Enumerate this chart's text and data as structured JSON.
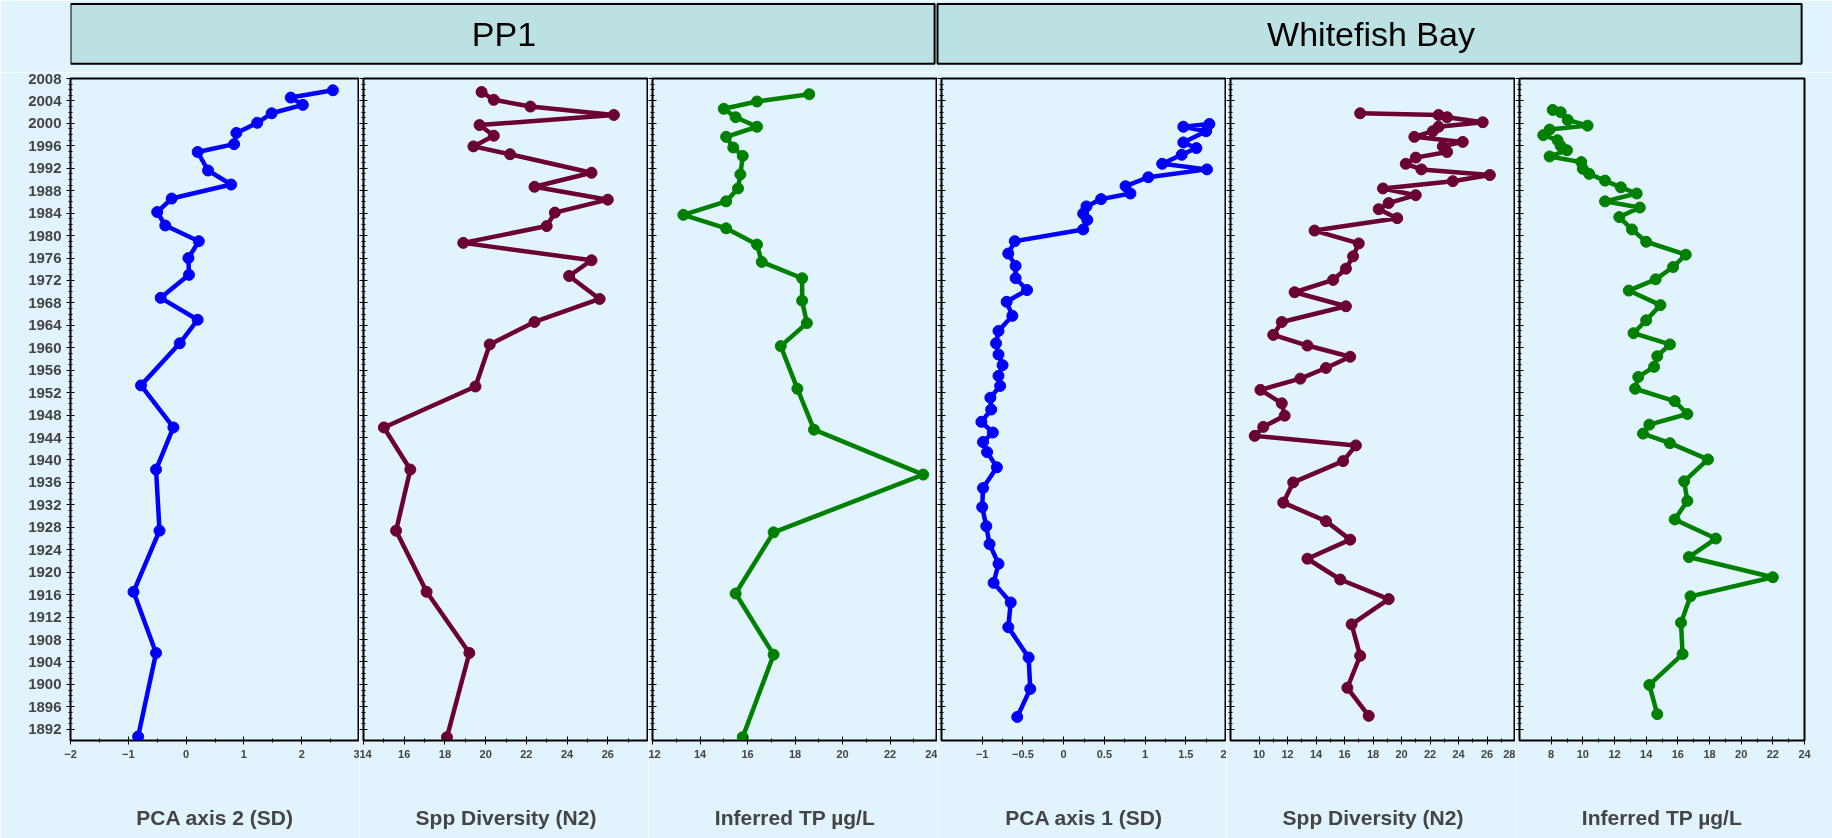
{
  "chart_data": [
    {
      "type": "other",
      "annotations": [
        "PP1",
        "Whitefish Bay"
      ]
    },
    {
      "type": "line",
      "xlabel": "PCA axis 2 (SD)",
      "xlim": [
        -2,
        3
      ],
      "xticks": [
        -2,
        -1,
        0,
        1,
        2,
        3
      ],
      "ylim": [
        1890,
        2008
      ],
      "yticks": [
        1892,
        1896,
        1900,
        1904,
        1908,
        1912,
        1916,
        1920,
        1924,
        1928,
        1932,
        1936,
        1940,
        1944,
        1948,
        1952,
        1956,
        1960,
        1964,
        1968,
        1972,
        1976,
        1980,
        1984,
        1988,
        1992,
        1996,
        2000,
        2004,
        2008
      ],
      "marker": "circle",
      "grid": false,
      "series": [
        {
          "color": "#0000ff",
          "x": [
            2.54,
            1.81,
            2.02,
            1.48,
            1.23,
            0.87,
            0.83,
            0.2,
            0.38,
            0.78,
            -0.25,
            -0.5,
            -0.36,
            0.22,
            0.04,
            0.05,
            -0.44,
            0.2,
            -0.11,
            -0.78,
            -0.22,
            -0.52,
            -0.46,
            -0.91,
            -0.52,
            -0.83
          ],
          "values": [
            2005.9,
            2004.6,
            2003.3,
            2001.8,
            2000.1,
            1998.3,
            1996.3,
            1994.9,
            1991.6,
            1989.1,
            1986.6,
            1984.2,
            1981.8,
            1979,
            1976,
            1973,
            1968.9,
            1965,
            1960.8,
            1953.3,
            1945.8,
            1938.3,
            1927.4,
            1916.5,
            1905.6,
            1890.7
          ]
        }
      ]
    },
    {
      "type": "line",
      "xlabel": "Spp Diversity (N2)",
      "xlim": [
        14,
        28
      ],
      "xticks": [
        14,
        16,
        18,
        20,
        22,
        24,
        26,
        {
          "value": 28,
          "label": null
        }
      ],
      "ylim": [
        1890,
        2008
      ],
      "yticks": [
        1892,
        1896,
        1900,
        1904,
        1908,
        1912,
        1916,
        1920,
        1924,
        1928,
        1932,
        1936,
        1940,
        1944,
        1948,
        1952,
        1956,
        1960,
        1964,
        1968,
        1972,
        1976,
        1980,
        1984,
        1988,
        1992,
        1996,
        2000,
        2004,
        2008
      ],
      "tick_labels": "x",
      "marker": "circle",
      "grid": false,
      "series": [
        {
          "color": "#6b0033",
          "x": [
            19.8,
            20.4,
            22.2,
            26.3,
            19.7,
            20.4,
            19.4,
            21.2,
            25.2,
            22.4,
            26.0,
            23.4,
            23.0,
            18.9,
            25.2,
            24.1,
            25.6,
            22.4,
            20.2,
            19.5,
            15.0,
            16.3,
            15.6,
            17.1,
            19.2,
            18.1
          ],
          "values": [
            2005.6,
            2004.2,
            2003,
            2001.5,
            1999.7,
            1997.8,
            1995.9,
            1994.5,
            1991.2,
            1988.7,
            1986.4,
            1984.1,
            1981.7,
            1978.7,
            1975.6,
            1972.8,
            1968.7,
            1964.6,
            1960.6,
            1953.1,
            1945.8,
            1938.3,
            1927.4,
            1916.5,
            1905.6,
            1890.6
          ]
        }
      ]
    },
    {
      "type": "line",
      "xlabel": "Inferred TP µg/L",
      "xlim": [
        12,
        24
      ],
      "xticks": [
        12,
        14,
        16,
        18,
        20,
        22,
        24
      ],
      "ylim": [
        1890,
        2008
      ],
      "yticks": [
        1892,
        1896,
        1900,
        1904,
        1908,
        1912,
        1916,
        1920,
        1924,
        1928,
        1932,
        1936,
        1940,
        1944,
        1948,
        1952,
        1956,
        1960,
        1964,
        1968,
        1972,
        1976,
        1980,
        1984,
        1988,
        1992,
        1996,
        2000,
        2004,
        2008
      ],
      "tick_labels": "x",
      "marker": "circle",
      "grid": false,
      "series": [
        {
          "color": "#008000",
          "x": [
            18.6,
            16.4,
            15.0,
            15.5,
            16.4,
            15.1,
            15.4,
            15.8,
            15.7,
            15.6,
            15.1,
            13.3,
            15.1,
            16.4,
            16.6,
            18.3,
            18.3,
            18.5,
            17.4,
            18.1,
            18.8,
            23.4,
            17.1,
            15.5,
            17.1,
            15.8
          ],
          "values": [
            2005.2,
            2003.9,
            2002.6,
            2001.1,
            1999.4,
            1997.6,
            1995.7,
            1994.2,
            1990.9,
            1988.4,
            1986.1,
            1983.7,
            1981.3,
            1978.4,
            1975.3,
            1972.4,
            1968.4,
            1964.4,
            1960.3,
            1952.7,
            1945.4,
            1937.4,
            1927.1,
            1916.2,
            1905.3,
            1890.6
          ]
        }
      ]
    },
    {
      "type": "line",
      "xlabel": "PCA axis 1 (SD)",
      "xlim": [
        -1.5,
        2
      ],
      "xticks": [
        -1,
        -0.5,
        0,
        0.5,
        1,
        1.5,
        2
      ],
      "ylim": [
        1890,
        2008
      ],
      "yticks": [
        1892,
        1896,
        1900,
        1904,
        1908,
        1912,
        1916,
        1920,
        1924,
        1928,
        1932,
        1936,
        1940,
        1944,
        1948,
        1952,
        1956,
        1960,
        1964,
        1968,
        1972,
        1976,
        1980,
        1984,
        1988,
        1992,
        1996,
        2000,
        2004,
        2008
      ],
      "tick_labels": "x",
      "marker": "circle",
      "grid": false,
      "series": [
        {
          "color": "#0000ff",
          "x": [
            1.79,
            1.47,
            1.75,
            1.47,
            1.63,
            1.45,
            1.21,
            1.76,
            1.04,
            0.76,
            0.82,
            0.46,
            0.28,
            0.24,
            0.29,
            0.24,
            -0.6,
            -0.68,
            -0.59,
            -0.59,
            -0.45,
            -0.7,
            -0.63,
            -0.8,
            -0.83,
            -0.8,
            -0.75,
            -0.8,
            -0.78,
            -0.9,
            -0.89,
            -1.01,
            -0.87,
            -0.99,
            -0.94,
            -0.82,
            -0.99,
            -1.0,
            -0.95,
            -0.91,
            -0.8,
            -0.86,
            -0.65,
            -0.68,
            -0.43,
            -0.41,
            -0.57
          ],
          "values": [
            1999.9,
            1999.4,
            1998.6,
            1996.6,
            1995.6,
            1994.4,
            1992.8,
            1991.8,
            1990.4,
            1988.8,
            1987.5,
            1986.5,
            1985.2,
            1983.9,
            1982.8,
            1981.1,
            1979,
            1976.8,
            1974.6,
            1972.4,
            1970.3,
            1968.2,
            1965.7,
            1963,
            1960.8,
            1958.8,
            1956.9,
            1955,
            1953.2,
            1951.1,
            1949,
            1946.8,
            1944.9,
            1943.2,
            1941.4,
            1938.7,
            1935,
            1931.6,
            1928.2,
            1925,
            1921.5,
            1918.1,
            1914.6,
            1910.2,
            1904.8,
            1899.2,
            1894.2
          ]
        }
      ]
    },
    {
      "type": "line",
      "xlabel": "Spp Diversity (N2)",
      "xlim": [
        8,
        28
      ],
      "xticks": [
        10,
        12,
        14,
        16,
        18,
        20,
        22,
        24,
        26,
        28
      ],
      "ylim": [
        1890,
        2008
      ],
      "yticks": [
        1892,
        1896,
        1900,
        1904,
        1908,
        1912,
        1916,
        1920,
        1924,
        1928,
        1932,
        1936,
        1940,
        1944,
        1948,
        1952,
        1956,
        1960,
        1964,
        1968,
        1972,
        1976,
        1980,
        1984,
        1988,
        1992,
        1996,
        2000,
        2004,
        2008
      ],
      "tick_labels": "x",
      "marker": "circle",
      "grid": false,
      "series": [
        {
          "color": "#6b0033",
          "x": [
            17.1,
            22.6,
            23.2,
            25.7,
            22.6,
            22.2,
            20.9,
            24.3,
            22.9,
            23.2,
            21.0,
            20.3,
            21.4,
            26.2,
            23.6,
            18.7,
            21.0,
            19.1,
            18.4,
            19.7,
            13.9,
            17.0,
            16.6,
            16.1,
            15.2,
            12.5,
            16.1,
            11.6,
            11.0,
            13.4,
            16.4,
            14.7,
            12.9,
            10.1,
            11.6,
            11.8,
            10.3,
            9.7,
            16.8,
            15.9,
            12.4,
            11.7,
            14.7,
            16.4,
            13.4,
            15.7,
            19.1,
            16.5,
            17.1,
            16.2,
            17.7
          ],
          "values": [
            2001.8,
            2001.5,
            2001.1,
            2000.2,
            1999.4,
            1998.6,
            1997.6,
            1996.7,
            1995.9,
            1994.9,
            1993.9,
            1992.8,
            1991.8,
            1990.8,
            1989.7,
            1988.4,
            1987.2,
            1985.8,
            1984.7,
            1983.1,
            1980.9,
            1978.6,
            1976.3,
            1974.1,
            1972.1,
            1969.9,
            1967.4,
            1964.6,
            1962.3,
            1960.4,
            1958.4,
            1956.4,
            1954.5,
            1952.5,
            1950.1,
            1947.9,
            1945.9,
            1944.3,
            1942.6,
            1939.8,
            1936,
            1932.4,
            1929.1,
            1925.8,
            1922.4,
            1918.7,
            1915.2,
            1910.7,
            1905.1,
            1899.4,
            1894.4
          ]
        }
      ]
    },
    {
      "type": "line",
      "xlabel": "Inferred TP µg/L",
      "xlim": [
        6,
        24
      ],
      "xticks": [
        8,
        10,
        12,
        14,
        16,
        18,
        20,
        22,
        24
      ],
      "ylim": [
        1890,
        2008
      ],
      "yticks": [
        1892,
        1896,
        1900,
        1904,
        1908,
        1912,
        1916,
        1920,
        1924,
        1928,
        1932,
        1936,
        1940,
        1944,
        1948,
        1952,
        1956,
        1960,
        1964,
        1968,
        1972,
        1976,
        1980,
        1984,
        1988,
        1992,
        1996,
        2000,
        2004,
        2008
      ],
      "tick_labels": "x",
      "marker": "circle",
      "grid": false,
      "series": [
        {
          "color": "#008000",
          "x": [
            8.1,
            8.6,
            9.05,
            10.3,
            7.9,
            7.5,
            8.4,
            8.6,
            9.0,
            7.9,
            9.9,
            10.0,
            10.4,
            11.4,
            12.4,
            13.4,
            11.4,
            13.6,
            12.3,
            13.1,
            14.0,
            16.5,
            15.7,
            14.6,
            12.9,
            14.9,
            14.0,
            13.2,
            15.5,
            14.7,
            14.5,
            13.5,
            13.3,
            15.8,
            16.6,
            14.2,
            13.8,
            15.5,
            17.9,
            16.4,
            16.6,
            15.8,
            18.4,
            16.7,
            22.0,
            16.8,
            16.2,
            16.3,
            14.2,
            14.7
          ],
          "values": [
            2002.4,
            2002,
            2000.6,
            1999.6,
            1998.9,
            1997.9,
            1997,
            1996,
            1995.2,
            1994.1,
            1993.1,
            1991.9,
            1991,
            1989.8,
            1988.6,
            1987.5,
            1986.1,
            1985,
            1983.3,
            1981.1,
            1978.9,
            1976.6,
            1974.4,
            1972.2,
            1970.2,
            1967.6,
            1964.9,
            1962.6,
            1960.6,
            1958.5,
            1956.6,
            1954.8,
            1952.7,
            1950.5,
            1948.2,
            1946.3,
            1944.7,
            1943,
            1940.1,
            1936.2,
            1932.7,
            1929.4,
            1926,
            1922.7,
            1919.1,
            1915.7,
            1911,
            1905.4,
            1899.9,
            1894.7
          ]
        }
      ]
    }
  ]
}
